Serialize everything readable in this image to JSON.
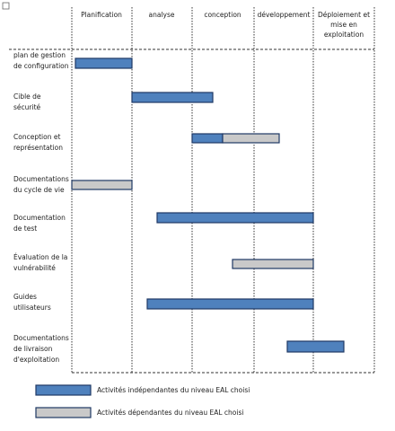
{
  "header": {
    "phases": [
      [
        "Planification"
      ],
      [
        "analyse"
      ],
      [
        "conception"
      ],
      [
        "développement"
      ],
      [
        "Déploiement et",
        "mise en",
        "exploitation"
      ]
    ]
  },
  "rows": [
    [
      "plan de gestion",
      "de configuration"
    ],
    [
      "Cible de",
      "sécurité"
    ],
    [
      "Conception et",
      "représentation"
    ],
    [
      "Documentations",
      "du cycle de vie"
    ],
    [
      "Documentation",
      "de test"
    ],
    [
      "Évaluation  de la",
      "vulnérabilité"
    ],
    [
      "Guides",
      "utilisateurs"
    ],
    [
      "Documentations",
      "de livraison",
      "d'exploitation"
    ]
  ],
  "legend": [
    "Activités indépendantes du niveau EAL choisi",
    "Activités dépendantes du niveau EAL choisi"
  ]
}
